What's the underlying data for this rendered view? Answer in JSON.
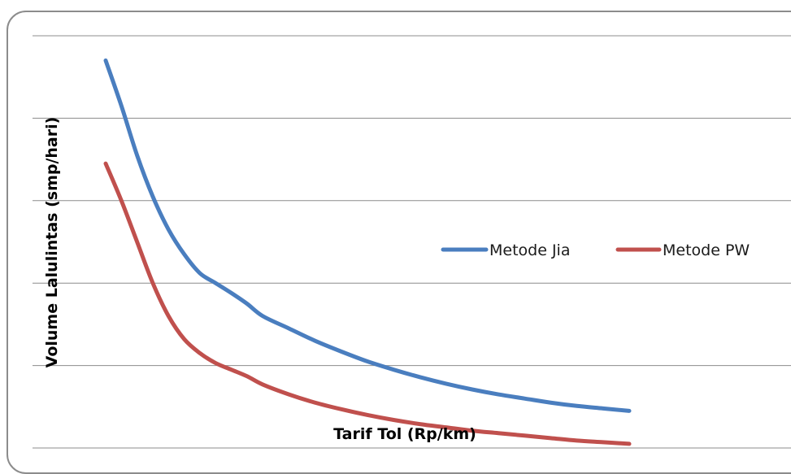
{
  "chart_data": {
    "type": "line",
    "title": "",
    "xlabel": "Tarif Tol (Rp/km)",
    "ylabel": "Volume Lalulintas (smp/hari)",
    "xlim": [
      0,
      10
    ],
    "ylim": [
      0,
      5
    ],
    "grid": true,
    "legend_position": "right",
    "series": [
      {
        "name": "Metode Jia",
        "color": "#4a7ebf",
        "x": [
          0,
          0.3,
          0.6,
          0.9,
          1.2,
          1.5,
          1.8,
          2.1,
          2.4,
          2.7,
          3.0,
          3.5,
          4.0,
          4.5,
          5.0,
          5.5,
          6.0,
          6.5,
          7.0,
          7.5,
          8.0,
          8.5,
          9.0,
          9.5,
          10.0
        ],
        "y": [
          4.7,
          4.15,
          3.55,
          3.05,
          2.65,
          2.35,
          2.12,
          2.0,
          1.88,
          1.75,
          1.6,
          1.45,
          1.3,
          1.17,
          1.05,
          0.95,
          0.86,
          0.78,
          0.71,
          0.65,
          0.6,
          0.55,
          0.51,
          0.48,
          0.45
        ]
      },
      {
        "name": "Metode PW",
        "color": "#c0504d",
        "x": [
          0,
          0.3,
          0.6,
          0.9,
          1.2,
          1.5,
          1.8,
          2.1,
          2.4,
          2.7,
          3.0,
          3.5,
          4.0,
          4.5,
          5.0,
          5.5,
          6.0,
          6.5,
          7.0,
          7.5,
          8.0,
          8.5,
          9.0,
          9.5,
          10.0
        ],
        "y": [
          3.45,
          3.0,
          2.5,
          2.0,
          1.6,
          1.32,
          1.15,
          1.03,
          0.95,
          0.87,
          0.77,
          0.65,
          0.55,
          0.47,
          0.4,
          0.34,
          0.29,
          0.25,
          0.21,
          0.18,
          0.15,
          0.12,
          0.09,
          0.07,
          0.05
        ]
      }
    ]
  }
}
